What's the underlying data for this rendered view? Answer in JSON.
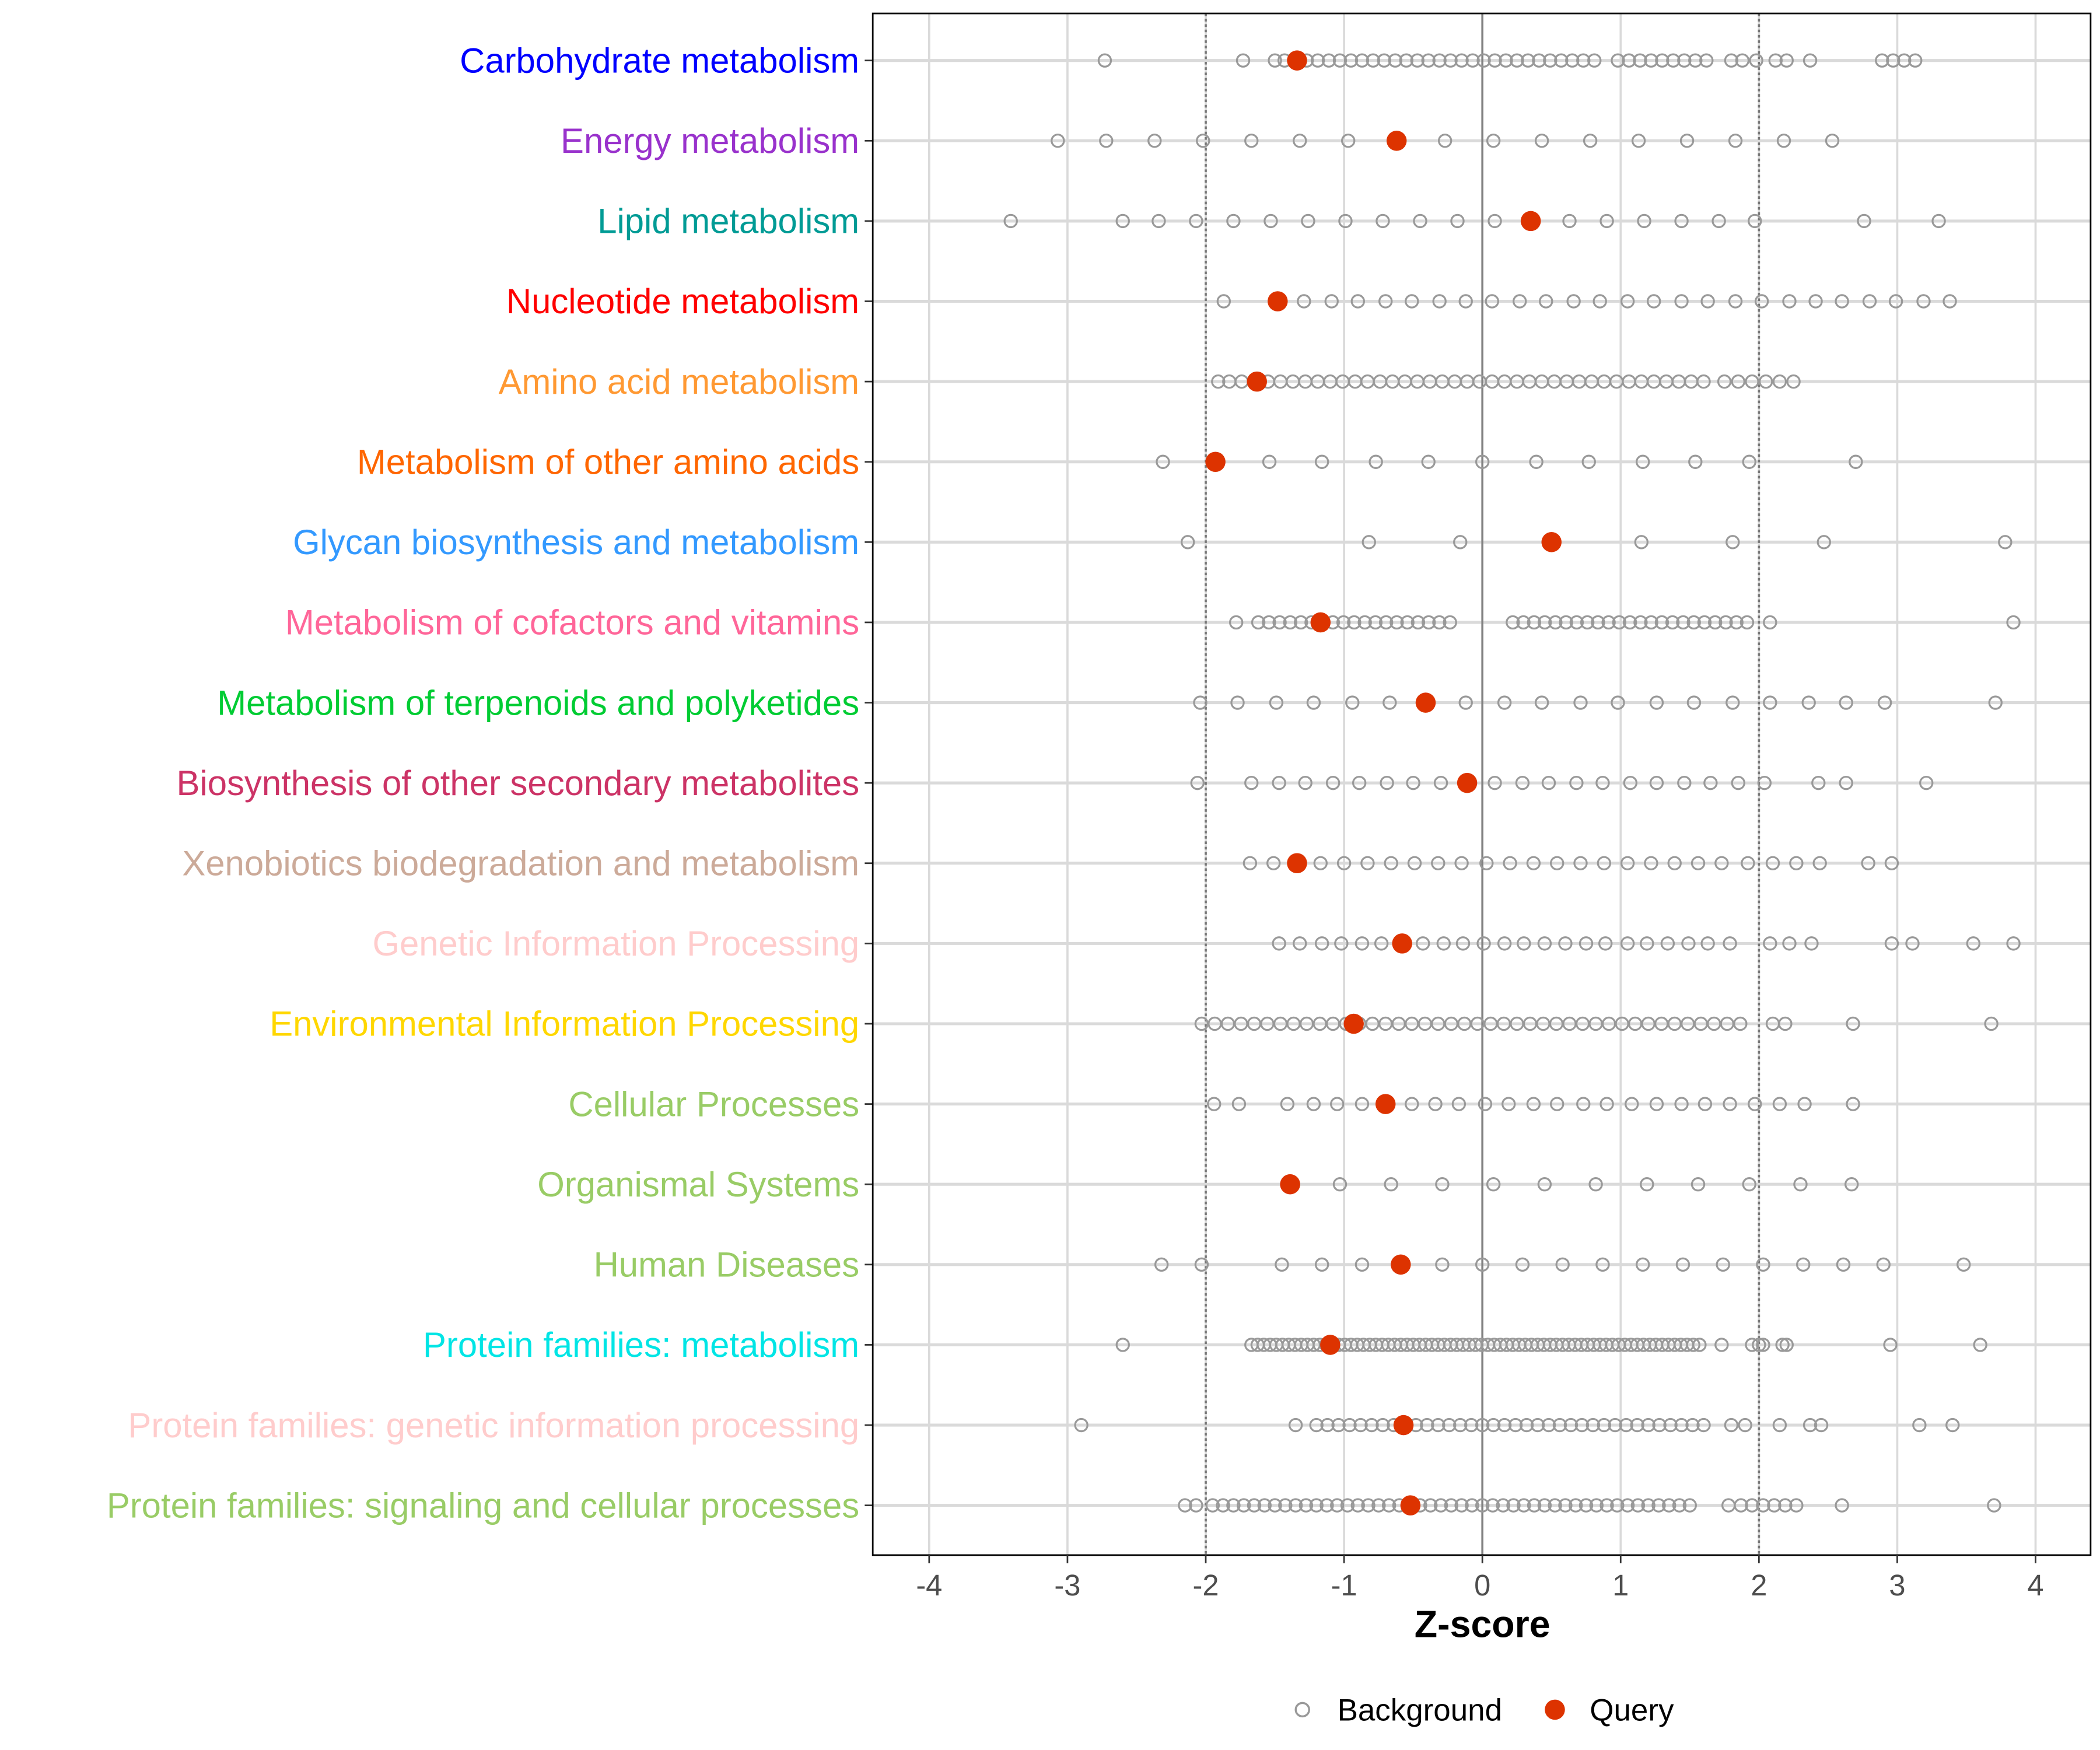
{
  "chart_data": {
    "type": "scatter",
    "title": "",
    "xlabel": "Z-score",
    "ylabel": "",
    "xlim": [
      -4.4,
      4.4
    ],
    "xticks": [
      -4,
      -3,
      -2,
      -1,
      0,
      1,
      2,
      3,
      4
    ],
    "xtick_labels": [
      "-4",
      "-3",
      "-2",
      "-1",
      "0",
      "1",
      "2",
      "3",
      "4"
    ],
    "reference_lines": {
      "solid": 0,
      "dotted": [
        -2,
        2
      ]
    },
    "grid": true,
    "legend": {
      "placement": "bottom",
      "entries": [
        {
          "label": "Background",
          "marker": "open-circle",
          "color": "#999999"
        },
        {
          "label": "Query",
          "marker": "filled-circle",
          "color": "#DD3300"
        }
      ]
    },
    "categories": [
      {
        "label": "Carbohydrate metabolism",
        "color": "#0000FF",
        "query": -1.34,
        "background": [
          -2.73,
          -1.73,
          -1.5,
          -1.43,
          0.98,
          1.06,
          1.14,
          1.22,
          1.3,
          1.38,
          1.46,
          1.54,
          1.62,
          1.8,
          1.88,
          1.98,
          2.12,
          2.2,
          2.37,
          2.89,
          2.97,
          3.05,
          3.13
        ],
        "background_runs": [
          [
            -1.27,
            0.81,
            0.08
          ]
        ]
      },
      {
        "label": "Energy metabolism",
        "color": "#9932CC",
        "query": -0.62,
        "background": [
          -3.07,
          -2.72,
          -2.37,
          -2.02,
          -1.67,
          -1.32,
          -0.97,
          -0.27,
          0.08,
          0.43,
          0.78,
          1.13,
          1.48,
          1.83,
          2.18,
          2.53
        ]
      },
      {
        "label": "Lipid metabolism",
        "color": "#009B95",
        "query": 0.35,
        "background": [
          -3.41,
          -2.6,
          -2.34,
          -2.07,
          -1.8,
          -1.53,
          -1.26,
          -0.99,
          -0.72,
          -0.45,
          -0.18,
          0.09,
          0.63,
          0.9,
          1.17,
          1.44,
          1.71,
          1.97,
          2.76,
          3.3
        ]
      },
      {
        "label": "Nucleotide metabolism",
        "color": "#FF0000",
        "query": -1.48,
        "background": [
          -1.87,
          -1.29,
          -1.09,
          -0.9,
          -0.7,
          -0.51,
          -0.31,
          -0.12,
          0.07,
          0.27,
          0.46,
          0.66,
          0.85,
          1.05,
          1.24,
          1.44,
          1.63,
          1.83,
          2.02,
          2.22,
          2.41,
          2.6,
          2.8,
          2.99,
          3.19,
          3.38
        ]
      },
      {
        "label": "Amino acid metabolism",
        "color": "#FF9933",
        "query": -1.63,
        "background": [
          -1.91,
          -1.83,
          -1.74,
          1.75,
          1.85,
          1.95,
          2.05,
          2.15,
          2.25
        ],
        "background_runs": [
          [
            -1.55,
            1.6,
            0.09
          ]
        ]
      },
      {
        "label": "Metabolism of other amino acids",
        "color": "#FF6600",
        "query": -1.93,
        "background": [
          -2.31,
          -1.54,
          -1.16,
          -0.77,
          -0.39,
          0,
          0.39,
          0.77,
          1.16,
          1.54,
          1.93,
          2.7
        ]
      },
      {
        "label": "Glycan biosynthesis and metabolism",
        "color": "#3399FF",
        "query": 0.5,
        "background": [
          -2.13,
          -0.82,
          -0.16,
          1.15,
          1.81,
          2.47,
          3.78
        ]
      },
      {
        "label": "Metabolism of cofactors and vitamins",
        "color": "#FF6699",
        "query": -1.17,
        "background": [
          -1.78,
          2.08,
          3.84
        ],
        "background_runs": [
          [
            -1.62,
            -0.23,
            0.077
          ],
          [
            0.22,
            1.93,
            0.077
          ]
        ]
      },
      {
        "label": "Metabolism of terpenoids and polyketides",
        "color": "#00CC33",
        "query": -0.41,
        "background": [
          -2.04,
          -1.77,
          -1.49,
          -1.22,
          -0.94,
          -0.67,
          -0.12,
          0.16,
          0.43,
          0.71,
          0.98,
          1.26,
          1.53,
          1.81,
          2.08,
          2.36,
          2.63,
          2.91,
          3.71
        ]
      },
      {
        "label": "Biosynthesis of other secondary metabolites",
        "color": "#CC3366",
        "query": -0.11,
        "background": [
          -2.06,
          -1.67,
          -1.47,
          -1.28,
          -1.08,
          -0.89,
          -0.69,
          -0.5,
          -0.3,
          0.09,
          0.29,
          0.48,
          0.68,
          0.87,
          1.07,
          1.26,
          1.46,
          1.65,
          1.85,
          2.04,
          2.43,
          2.63,
          3.21
        ]
      },
      {
        "label": "Xenobiotics biodegradation and metabolism",
        "color": "#CCAA99",
        "query": -1.34,
        "background": [
          -1.68,
          -1.51,
          -1.17,
          -1.0,
          -0.83,
          -0.66,
          -0.49,
          -0.32,
          -0.15,
          0.03,
          0.2,
          0.37,
          0.54,
          0.71,
          0.88,
          1.05,
          1.22,
          1.39,
          1.56,
          1.73,
          1.92,
          2.1,
          2.27,
          2.44,
          2.79,
          2.96
        ]
      },
      {
        "label": "Genetic Information Processing",
        "color": "#FFCCCC",
        "query": -0.58,
        "background": [
          -1.47,
          -1.32,
          -1.16,
          -1.02,
          -0.87,
          -0.73,
          -0.43,
          -0.28,
          -0.14,
          0.01,
          0.16,
          0.3,
          0.45,
          0.6,
          0.75,
          0.89,
          1.05,
          1.19,
          1.34,
          1.49,
          1.63,
          1.79,
          2.08,
          2.22,
          2.38,
          2.96,
          3.11,
          3.55,
          3.84
        ]
      },
      {
        "label": "Environmental Information Processing",
        "color": "#FFD700",
        "query": -0.93,
        "background": [
          2.1,
          2.19,
          2.68,
          3.68
        ],
        "background_runs": [
          [
            -2.03,
            1.9,
            0.095
          ]
        ]
      },
      {
        "label": "Cellular Processes",
        "color": "#99CC66",
        "query": -0.7,
        "background": [
          -1.94,
          -1.76,
          -1.41,
          -1.22,
          -1.05,
          -0.87,
          -0.51,
          -0.34,
          -0.17,
          0.02,
          0.19,
          0.37,
          0.54,
          0.73,
          0.9,
          1.08,
          1.26,
          1.44,
          1.61,
          1.79,
          1.97,
          2.15,
          2.33,
          2.68
        ]
      },
      {
        "label": "Organismal Systems",
        "color": "#99CC66",
        "query": -1.39,
        "background": [
          -1.03,
          -0.66,
          -0.29,
          0.08,
          0.45,
          0.82,
          1.19,
          1.56,
          1.93,
          2.3,
          2.67
        ]
      },
      {
        "label": "Human Diseases",
        "color": "#99CC66",
        "query": -0.59,
        "background": [
          -2.32,
          -2.03,
          -1.45,
          -1.16,
          -0.87,
          -0.29,
          0,
          0.29,
          0.58,
          0.87,
          1.16,
          1.45,
          1.74,
          2.03,
          2.32,
          2.61,
          2.9,
          3.48
        ]
      },
      {
        "label": "Protein families: metabolism",
        "color": "#00E5E5",
        "query": -1.1,
        "background": [
          -2.6,
          1.73,
          1.95,
          2.0,
          2.03,
          2.17,
          2.2,
          2.95,
          3.6
        ],
        "background_runs": [
          [
            -1.67,
            1.57,
            0.045
          ]
        ]
      },
      {
        "label": "Protein families: genetic information processing",
        "color": "#FFCCCC",
        "query": -0.57,
        "background": [
          -2.9,
          -1.35,
          1.8,
          1.9,
          2.15,
          2.37,
          2.45,
          3.16,
          3.4
        ],
        "background_runs": [
          [
            -1.2,
            1.62,
            0.08
          ]
        ]
      },
      {
        "label": "Protein families: signaling and cellular processes",
        "color": "#99CC66",
        "query": -0.52,
        "background": [
          -2.15,
          -2.07,
          1.78,
          1.87,
          1.95,
          2.03,
          2.11,
          2.19,
          2.27,
          2.6,
          3.7
        ],
        "background_runs": [
          [
            -1.95,
            1.55,
            0.075
          ]
        ]
      }
    ]
  }
}
